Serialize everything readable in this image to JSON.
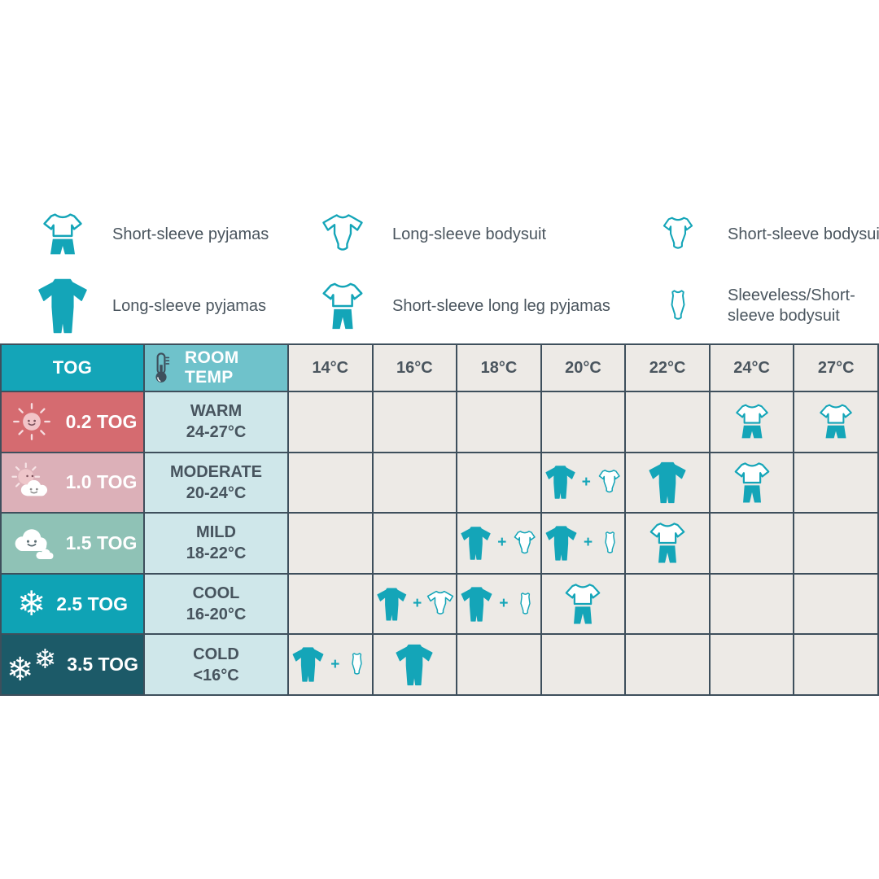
{
  "colors": {
    "teal": "#14a5b8",
    "border": "#3e4f5c",
    "tog_header_bg": "#14a5b8",
    "room_temp_header_bg": "#6fc2cb",
    "room_temp_cell_bg": "#cfe7ea",
    "temp_cell_bg": "#edeae6",
    "text_dark": "#4a555e",
    "row_0_2_tog": "#d56b70",
    "row_1_0_tog": "#dcb0b8",
    "row_1_5_tog": "#8fc2b6",
    "row_2_5_tog": "#0fa3b5",
    "row_3_5_tog": "#1c5a68"
  },
  "legend": {
    "columns": [
      {
        "items": [
          {
            "icon": "short-sleeve-pyjamas",
            "label": "Short-sleeve pyjamas"
          },
          {
            "icon": "long-sleeve-pyjamas",
            "label": "Long-sleeve pyjamas"
          }
        ]
      },
      {
        "items": [
          {
            "icon": "long-sleeve-bodysuit",
            "label": "Long-sleeve bodysuit"
          },
          {
            "icon": "short-sleeve-long-leg-pyjamas",
            "label": "Short-sleeve long leg pyjamas"
          }
        ]
      },
      {
        "items": [
          {
            "icon": "short-sleeve-bodysuit",
            "label": "Short-sleeve bodysuit"
          },
          {
            "icon": "sleeveless-bodysuit",
            "label": "Sleeveless/Short-sleeve bodysuit"
          }
        ]
      }
    ]
  },
  "table": {
    "tog_header": "TOG",
    "room_temp_header": "ROOM TEMP",
    "room_temp_icon": "thermometer",
    "temp_columns": [
      "14°C",
      "16°C",
      "18°C",
      "20°C",
      "22°C",
      "24°C",
      "27°C"
    ],
    "plus_sign": "+",
    "snowflake_glyph": "❄",
    "rows": [
      {
        "tog_label": "0.2 TOG",
        "weather": "sun",
        "row_color": "#d56b70",
        "temp_name": "WARM",
        "temp_range": "24-27°C",
        "cells": [
          [],
          [],
          [],
          [],
          [],
          [
            "short-sleeve-pyjamas"
          ],
          [
            "short-sleeve-pyjamas"
          ]
        ]
      },
      {
        "tog_label": "1.0 TOG",
        "weather": "sun-cloud",
        "row_color": "#dcb0b8",
        "temp_name": "MODERATE",
        "temp_range": "20-24°C",
        "cells": [
          [],
          [],
          [],
          [
            "long-sleeve-pyjamas",
            "+",
            "short-sleeve-bodysuit"
          ],
          [
            "long-sleeve-pyjamas"
          ],
          [
            "short-sleeve-long-leg-pyjamas"
          ],
          []
        ]
      },
      {
        "tog_label": "1.5 TOG",
        "weather": "cloud",
        "row_color": "#8fc2b6",
        "temp_name": "MILD",
        "temp_range": "18-22°C",
        "cells": [
          [],
          [],
          [
            "long-sleeve-pyjamas",
            "+",
            "short-sleeve-bodysuit"
          ],
          [
            "long-sleeve-pyjamas",
            "+",
            "sleeveless-bodysuit"
          ],
          [
            "short-sleeve-long-leg-pyjamas"
          ],
          [],
          []
        ]
      },
      {
        "tog_label": "2.5 TOG",
        "weather": "snowflake",
        "row_color": "#0fa3b5",
        "temp_name": "COOL",
        "temp_range": "16-20°C",
        "cells": [
          [],
          [
            "long-sleeve-pyjamas",
            "+",
            "long-sleeve-bodysuit"
          ],
          [
            "long-sleeve-pyjamas",
            "+",
            "sleeveless-bodysuit"
          ],
          [
            "short-sleeve-long-leg-pyjamas"
          ],
          [],
          [],
          []
        ]
      },
      {
        "tog_label": "3.5 TOG",
        "weather": "double-snowflake",
        "row_color": "#1c5a68",
        "temp_name": "COLD",
        "temp_range": "<16°C",
        "cells": [
          [
            "long-sleeve-pyjamas",
            "+",
            "sleeveless-bodysuit"
          ],
          [
            "long-sleeve-pyjamas"
          ],
          [],
          [],
          [],
          [],
          []
        ]
      }
    ]
  }
}
